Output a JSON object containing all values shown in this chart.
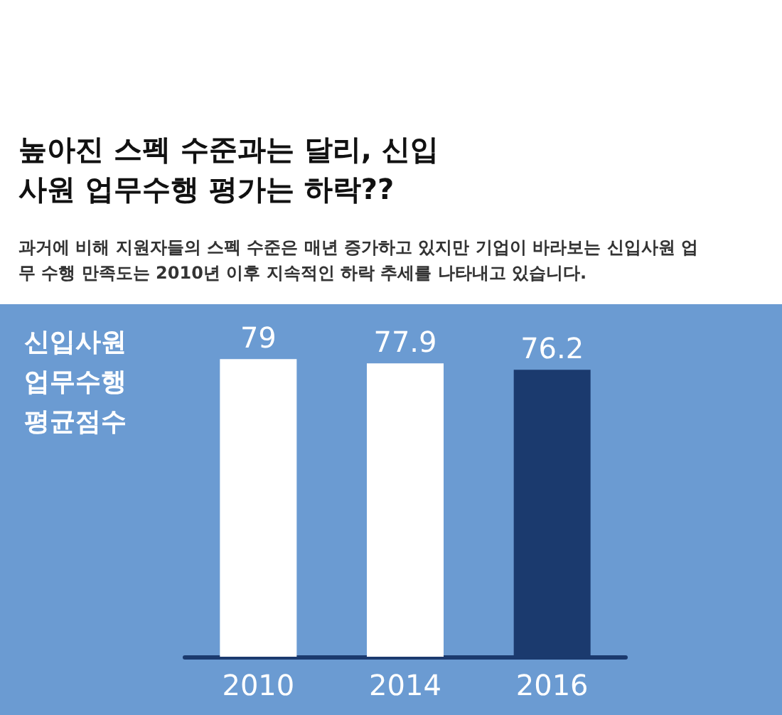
{
  "chart_data": {
    "type": "bar",
    "title": "높아진 스펙 수준과는 달리, 신입사원 업무수행 평가는 하락??",
    "subtitle": "과거에 비해 지원자들의 스펙 수준은 매년 증가하고 있지만 기업이 바라보는 신입사원 업무 수행 만족도는 2010년 이후 지속적인 하락 추세를 나타내고 있습니다.",
    "ylabel": "신입사원 업무수행 평균점수",
    "categories": [
      "2010",
      "2014",
      "2016"
    ],
    "values": [
      79,
      77.9,
      76.2
    ],
    "colors": [
      "#ffffff",
      "#ffffff",
      "#1b3a6e"
    ],
    "data_labels": true,
    "tick_labels": "x"
  }
}
